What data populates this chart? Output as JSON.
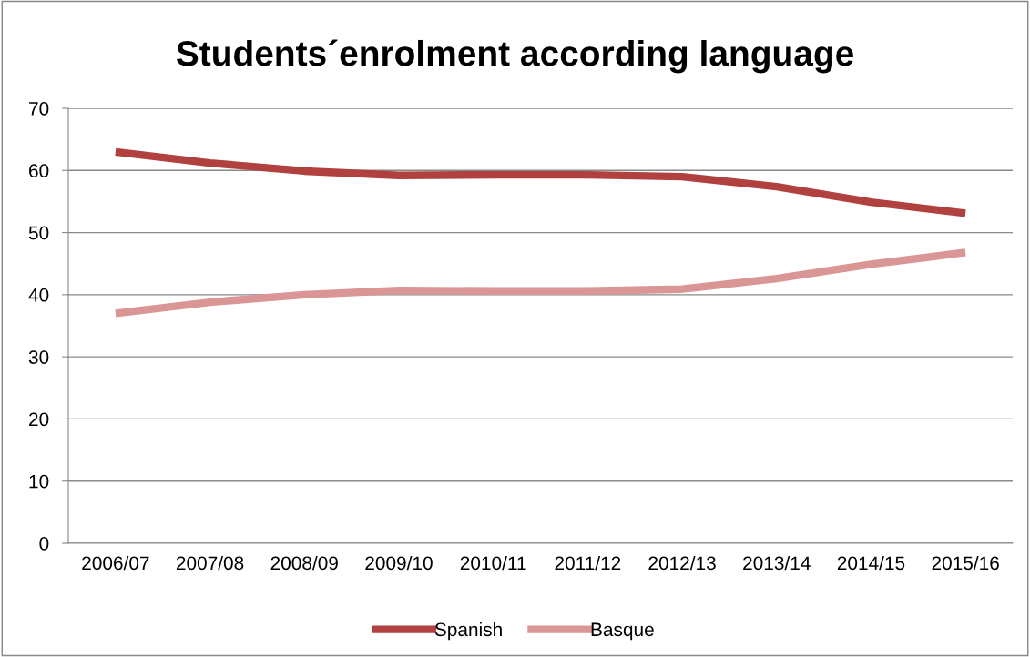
{
  "chart_data": {
    "type": "line",
    "title": "Students´enrolment according language",
    "categories": [
      "2006/07",
      "2007/08",
      "2008/09",
      "2009/10",
      "2010/11",
      "2011/12",
      "2012/13",
      "2013/14",
      "2014/15",
      "2015/16"
    ],
    "series": [
      {
        "name": "Spanish",
        "color": "#b0413e",
        "values": [
          63,
          61.2,
          59.9,
          59.2,
          59.3,
          59.3,
          59.0,
          57.4,
          54.9,
          53.1
        ]
      },
      {
        "name": "Basque",
        "color": "#d99694",
        "values": [
          37,
          38.8,
          40.0,
          40.7,
          40.6,
          40.6,
          40.9,
          42.6,
          44.9,
          46.8
        ]
      }
    ],
    "ylim": [
      0,
      70
    ],
    "yticks": [
      0,
      10,
      20,
      30,
      40,
      50,
      60,
      70
    ],
    "grid": "y",
    "legend": "bottom",
    "marker": "none",
    "line_style": "solid"
  }
}
